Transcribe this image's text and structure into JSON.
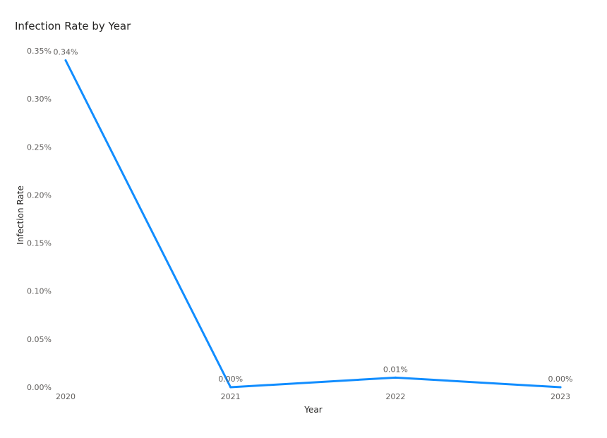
{
  "chart_data": {
    "type": "line",
    "title": "Infection Rate by Year",
    "xlabel": "Year",
    "ylabel": "Infection Rate",
    "categories": [
      "2020",
      "2021",
      "2022",
      "2023"
    ],
    "series": [
      {
        "values": [
          0.0034,
          0.0,
          0.0001,
          0.0
        ],
        "data_labels": [
          "0.34%",
          "0.00%",
          "0.01%",
          "0.00%"
        ],
        "color": "#118dff"
      }
    ],
    "ylim": [
      0,
      0.0035
    ],
    "yticks": [
      0,
      0.0005,
      0.001,
      0.0015,
      0.002,
      0.0025,
      0.003,
      0.0035
    ],
    "ytick_labels": [
      "0.00%",
      "0.05%",
      "0.10%",
      "0.15%",
      "0.20%",
      "0.25%",
      "0.30%",
      "0.35%"
    ],
    "grid": false,
    "legend": "none"
  }
}
